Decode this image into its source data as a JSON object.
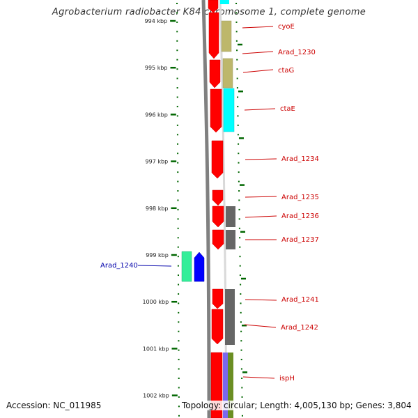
{
  "title": "Agrobacterium radiobacter K84 chromosome 1, complete genome",
  "footer": {
    "accession": "Accession: NC_011985",
    "summary": "Topology: circular; Length: 4,005,130 bp; Genes: 3,804"
  },
  "colors": {
    "cds_forward": "#ff0000",
    "olive_track": "#bdb76b",
    "cyan_track": "#00ffff",
    "gray_track": "#666666",
    "blue_gene": "#0000ff",
    "green_gene": "#33ee99",
    "label_red": "#cc0000",
    "label_blue": "#0000aa",
    "tick_green": "#006600",
    "backbone": "#808080"
  },
  "kbp_ticks": [
    {
      "label": "994 kbp"
    },
    {
      "label": "995 kbp"
    },
    {
      "label": "996 kbp"
    },
    {
      "label": "997 kbp"
    },
    {
      "label": "998 kbp"
    },
    {
      "label": "999 kbp"
    },
    {
      "label": "1000 kbp"
    },
    {
      "label": "1001 kbp"
    },
    {
      "label": "1002 kbp"
    }
  ],
  "gene_labels_right": [
    {
      "label": "cyoE"
    },
    {
      "label": "Arad_1230"
    },
    {
      "label": "ctaG"
    },
    {
      "label": "ctaE"
    },
    {
      "label": "Arad_1234"
    },
    {
      "label": "Arad_1235"
    },
    {
      "label": "Arad_1236"
    },
    {
      "label": "Arad_1237"
    },
    {
      "label": "Arad_1241"
    },
    {
      "label": "Arad_1242"
    },
    {
      "label": "ispH"
    }
  ],
  "gene_labels_left": [
    {
      "label": "Arad_1240"
    }
  ]
}
